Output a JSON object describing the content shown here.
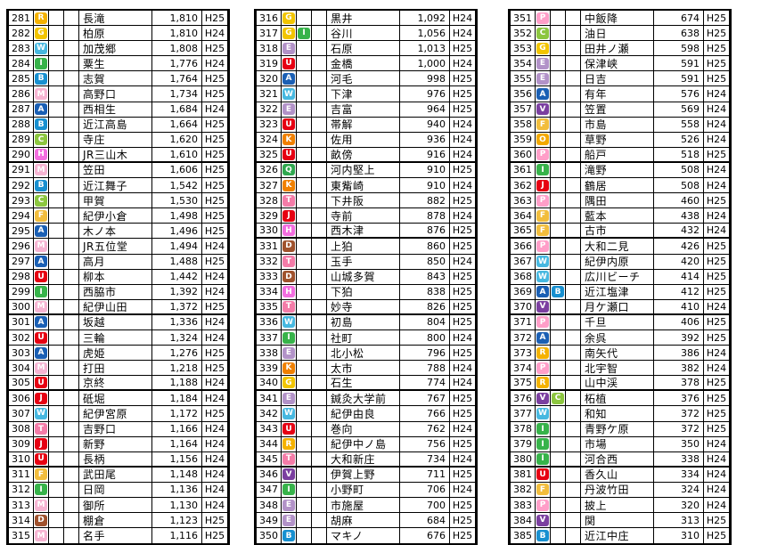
{
  "colors": {
    "R": "#f5b200",
    "G": "#f2c500",
    "W": "#47b8e0",
    "I": "#37b34a",
    "S": "#0099dd",
    "H": "#f36ee0",
    "A": "#1a5fb4",
    "B": "#1890d0",
    "C": "#8cc63f",
    "U": "#e60012",
    "J": "#e60012",
    "E": "#b292c8",
    "K": "#f08000",
    "Q": "#2fa84f",
    "T": "#f47ca8",
    "D": "#a0522d",
    "V": "#7b3fa0",
    "O": "#f3a800",
    "L": "#9c6bb5",
    "P": "#ff9ec8",
    "M": "#f6b4d2",
    "F": "#f2bd3c",
    "N": "#c2a0d6"
  },
  "tables": [
    {
      "rows": [
        {
          "num": "281",
          "b1": "R",
          "name": "長滝",
          "val": "1,810",
          "yr": "H25"
        },
        {
          "num": "282",
          "b1": "G",
          "name": "柏原",
          "val": "1,810",
          "yr": "H24"
        },
        {
          "num": "283",
          "b1": "W",
          "name": "加茂郷",
          "val": "1,808",
          "yr": "H25"
        },
        {
          "num": "284",
          "b1": "I",
          "name": "粟生",
          "val": "1,776",
          "yr": "H24"
        },
        {
          "num": "285",
          "b1": "B",
          "name": "志賀",
          "val": "1,764",
          "yr": "H25"
        },
        {
          "num": "286",
          "b1": "M",
          "name": "高野口",
          "val": "1,734",
          "yr": "H25"
        },
        {
          "num": "287",
          "b1": "A",
          "name": "西相生",
          "val": "1,684",
          "yr": "H24"
        },
        {
          "num": "288",
          "b1": "B",
          "name": "近江高島",
          "val": "1,664",
          "yr": "H25"
        },
        {
          "num": "289",
          "b1": "C",
          "name": "寺庄",
          "val": "1,620",
          "yr": "H25"
        },
        {
          "num": "290",
          "b1": "H",
          "name": "JR三山木",
          "val": "1,610",
          "yr": "H25",
          "thick": true
        },
        {
          "num": "291",
          "b1": "M",
          "name": "笠田",
          "val": "1,606",
          "yr": "H25"
        },
        {
          "num": "292",
          "b1": "B",
          "name": "近江舞子",
          "val": "1,542",
          "yr": "H25"
        },
        {
          "num": "293",
          "b1": "C",
          "name": "甲賀",
          "val": "1,530",
          "yr": "H25"
        },
        {
          "num": "294",
          "b1": "F",
          "name": "紀伊小倉",
          "val": "1,498",
          "yr": "H25"
        },
        {
          "num": "295",
          "b1": "A",
          "name": "木ノ本",
          "val": "1,496",
          "yr": "H25"
        },
        {
          "num": "296",
          "b1": "M",
          "name": "JR五位堂",
          "val": "1,494",
          "yr": "H24"
        },
        {
          "num": "297",
          "b1": "A",
          "name": "高月",
          "val": "1,488",
          "yr": "H25"
        },
        {
          "num": "298",
          "b1": "U",
          "name": "柳本",
          "val": "1,442",
          "yr": "H24"
        },
        {
          "num": "299",
          "b1": "I",
          "name": "西脇市",
          "val": "1,392",
          "yr": "H24"
        },
        {
          "num": "300",
          "b1": "M",
          "name": "紀伊山田",
          "val": "1,372",
          "yr": "H25",
          "thick": true
        },
        {
          "num": "301",
          "b1": "A",
          "name": "坂越",
          "val": "1,336",
          "yr": "H24"
        },
        {
          "num": "302",
          "b1": "U",
          "name": "三輪",
          "val": "1,324",
          "yr": "H24"
        },
        {
          "num": "303",
          "b1": "A",
          "name": "虎姫",
          "val": "1,276",
          "yr": "H25"
        },
        {
          "num": "304",
          "b1": "M",
          "name": "打田",
          "val": "1,218",
          "yr": "H25"
        },
        {
          "num": "305",
          "b1": "U",
          "name": "京終",
          "val": "1,188",
          "yr": "H24",
          "thick": true
        },
        {
          "num": "306",
          "b1": "J",
          "name": "砥堀",
          "val": "1,184",
          "yr": "H24"
        },
        {
          "num": "307",
          "b1": "W",
          "name": "紀伊宮原",
          "val": "1,172",
          "yr": "H25"
        },
        {
          "num": "308",
          "b1": "T",
          "name": "吉野口",
          "val": "1,166",
          "yr": "H24"
        },
        {
          "num": "309",
          "b1": "J",
          "name": "新野",
          "val": "1,164",
          "yr": "H24"
        },
        {
          "num": "310",
          "b1": "U",
          "name": "長柄",
          "val": "1,156",
          "yr": "H24",
          "thick": true
        },
        {
          "num": "311",
          "b1": "F",
          "name": "武田尾",
          "val": "1,148",
          "yr": "H24"
        },
        {
          "num": "312",
          "b1": "I",
          "name": "日岡",
          "val": "1,136",
          "yr": "H24"
        },
        {
          "num": "313",
          "b1": "M",
          "name": "御所",
          "val": "1,130",
          "yr": "H24"
        },
        {
          "num": "314",
          "b1": "D",
          "name": "棚倉",
          "val": "1,123",
          "yr": "H25"
        },
        {
          "num": "315",
          "b1": "M",
          "name": "名手",
          "val": "1,116",
          "yr": "H25"
        }
      ]
    },
    {
      "rows": [
        {
          "num": "316",
          "b1": "G",
          "name": "黒井",
          "val": "1,092",
          "yr": "H24"
        },
        {
          "num": "317",
          "b1": "G",
          "b2": "I",
          "name": "谷川",
          "val": "1,056",
          "yr": "H24"
        },
        {
          "num": "318",
          "b1": "E",
          "name": "石原",
          "val": "1,013",
          "yr": "H25"
        },
        {
          "num": "319",
          "b1": "U",
          "name": "金橋",
          "val": "1,000",
          "yr": "H24"
        },
        {
          "num": "320",
          "b1": "A",
          "name": "河毛",
          "val": "998",
          "yr": "H25"
        },
        {
          "num": "321",
          "b1": "W",
          "name": "下津",
          "val": "976",
          "yr": "H25"
        },
        {
          "num": "322",
          "b1": "E",
          "name": "吉富",
          "val": "964",
          "yr": "H25"
        },
        {
          "num": "323",
          "b1": "U",
          "name": "帯解",
          "val": "940",
          "yr": "H24"
        },
        {
          "num": "324",
          "b1": "K",
          "name": "佐用",
          "val": "936",
          "yr": "H24"
        },
        {
          "num": "325",
          "b1": "U",
          "name": "畝傍",
          "val": "916",
          "yr": "H24",
          "thick": true
        },
        {
          "num": "326",
          "b1": "Q",
          "name": "河内堅上",
          "val": "910",
          "yr": "H25"
        },
        {
          "num": "327",
          "b1": "K",
          "name": "東觜崎",
          "val": "910",
          "yr": "H24"
        },
        {
          "num": "328",
          "b1": "T",
          "name": "下井阪",
          "val": "882",
          "yr": "H25"
        },
        {
          "num": "329",
          "b1": "J",
          "name": "寺前",
          "val": "878",
          "yr": "H24"
        },
        {
          "num": "330",
          "b1": "H",
          "name": "西木津",
          "val": "876",
          "yr": "H25",
          "thick": true
        },
        {
          "num": "331",
          "b1": "D",
          "name": "上狛",
          "val": "860",
          "yr": "H25"
        },
        {
          "num": "332",
          "b1": "T",
          "name": "玉手",
          "val": "850",
          "yr": "H24"
        },
        {
          "num": "333",
          "b1": "D",
          "name": "山城多賀",
          "val": "843",
          "yr": "H25"
        },
        {
          "num": "334",
          "b1": "H",
          "name": "下狛",
          "val": "838",
          "yr": "H25"
        },
        {
          "num": "335",
          "b1": "T",
          "name": "妙寺",
          "val": "826",
          "yr": "H25",
          "thick": true
        },
        {
          "num": "336",
          "b1": "W",
          "name": "初島",
          "val": "804",
          "yr": "H25"
        },
        {
          "num": "337",
          "b1": "I",
          "name": "社町",
          "val": "800",
          "yr": "H24"
        },
        {
          "num": "338",
          "b1": "E",
          "name": "北小松",
          "val": "796",
          "yr": "H25"
        },
        {
          "num": "339",
          "b1": "K",
          "name": "太市",
          "val": "788",
          "yr": "H24"
        },
        {
          "num": "340",
          "b1": "G",
          "name": "石生",
          "val": "774",
          "yr": "H24",
          "thick": true
        },
        {
          "num": "341",
          "b1": "E",
          "name": "鍼灸大学前",
          "val": "767",
          "yr": "H25"
        },
        {
          "num": "342",
          "b1": "W",
          "name": "紀伊由良",
          "val": "766",
          "yr": "H25"
        },
        {
          "num": "343",
          "b1": "U",
          "name": "巻向",
          "val": "762",
          "yr": "H24"
        },
        {
          "num": "344",
          "b1": "R",
          "name": "紀伊中ノ島",
          "val": "756",
          "yr": "H25"
        },
        {
          "num": "345",
          "b1": "T",
          "name": "大和新庄",
          "val": "734",
          "yr": "H24",
          "thick": true
        },
        {
          "num": "346",
          "b1": "V",
          "name": "伊賀上野",
          "val": "711",
          "yr": "H25"
        },
        {
          "num": "347",
          "b1": "I",
          "name": "小野町",
          "val": "706",
          "yr": "H24"
        },
        {
          "num": "348",
          "b1": "E",
          "name": "市施屋",
          "val": "700",
          "yr": "H25"
        },
        {
          "num": "349",
          "b1": "E",
          "name": "胡麻",
          "val": "684",
          "yr": "H25"
        },
        {
          "num": "350",
          "b1": "B",
          "name": "マキノ",
          "val": "676",
          "yr": "H25"
        }
      ]
    },
    {
      "rows": [
        {
          "num": "351",
          "b1": "P",
          "name": "中飯降",
          "val": "674",
          "yr": "H25"
        },
        {
          "num": "352",
          "b1": "C",
          "name": "油日",
          "val": "638",
          "yr": "H25"
        },
        {
          "num": "353",
          "b1": "G",
          "name": "田井ノ瀬",
          "val": "598",
          "yr": "H25"
        },
        {
          "num": "354",
          "b1": "E",
          "name": "保津峡",
          "val": "591",
          "yr": "H25"
        },
        {
          "num": "355",
          "b1": "E",
          "name": "日吉",
          "val": "591",
          "yr": "H25"
        },
        {
          "num": "356",
          "b1": "A",
          "name": "有年",
          "val": "576",
          "yr": "H24"
        },
        {
          "num": "357",
          "b1": "V",
          "name": "笠置",
          "val": "569",
          "yr": "H24"
        },
        {
          "num": "358",
          "b1": "F",
          "name": "市島",
          "val": "558",
          "yr": "H24"
        },
        {
          "num": "359",
          "b1": "O",
          "name": "草野",
          "val": "526",
          "yr": "H24"
        },
        {
          "num": "360",
          "b1": "P",
          "name": "船戸",
          "val": "518",
          "yr": "H25",
          "thick": true
        },
        {
          "num": "361",
          "b1": "I",
          "name": "滝野",
          "val": "508",
          "yr": "H24"
        },
        {
          "num": "362",
          "b1": "J",
          "name": "鶴居",
          "val": "508",
          "yr": "H24"
        },
        {
          "num": "363",
          "b1": "P",
          "name": "隅田",
          "val": "460",
          "yr": "H25"
        },
        {
          "num": "364",
          "b1": "F",
          "name": "藍本",
          "val": "438",
          "yr": "H24"
        },
        {
          "num": "365",
          "b1": "F",
          "name": "古市",
          "val": "432",
          "yr": "H24",
          "thick": true
        },
        {
          "num": "366",
          "b1": "P",
          "name": "大和二見",
          "val": "426",
          "yr": "H25"
        },
        {
          "num": "367",
          "b1": "W",
          "name": "紀伊内原",
          "val": "420",
          "yr": "H25"
        },
        {
          "num": "368",
          "b1": "W",
          "name": "広川ビーチ",
          "val": "414",
          "yr": "H25"
        },
        {
          "num": "369",
          "b1": "A",
          "b2": "B",
          "name": "近江塩津",
          "val": "412",
          "yr": "H25"
        },
        {
          "num": "370",
          "b1": "V",
          "name": "月ケ瀬口",
          "val": "410",
          "yr": "H24",
          "thick": true
        },
        {
          "num": "371",
          "b1": "P",
          "name": "千旦",
          "val": "406",
          "yr": "H25"
        },
        {
          "num": "372",
          "b1": "A",
          "name": "余呉",
          "val": "392",
          "yr": "H25"
        },
        {
          "num": "373",
          "b1": "R",
          "name": "南矢代",
          "val": "386",
          "yr": "H24"
        },
        {
          "num": "374",
          "b1": "P",
          "name": "北宇智",
          "val": "382",
          "yr": "H24"
        },
        {
          "num": "375",
          "b1": "R",
          "name": "山中渓",
          "val": "378",
          "yr": "H25",
          "thick": true
        },
        {
          "num": "376",
          "b1": "V",
          "b2": "C",
          "name": "柘植",
          "val": "376",
          "yr": "H25"
        },
        {
          "num": "377",
          "b1": "W",
          "name": "和知",
          "val": "372",
          "yr": "H25"
        },
        {
          "num": "378",
          "b1": "I",
          "name": "青野ケ原",
          "val": "372",
          "yr": "H25"
        },
        {
          "num": "379",
          "b1": "I",
          "name": "市場",
          "val": "350",
          "yr": "H24"
        },
        {
          "num": "380",
          "b1": "I",
          "name": "河合西",
          "val": "338",
          "yr": "H24",
          "thick": true
        },
        {
          "num": "381",
          "b1": "U",
          "name": "香久山",
          "val": "334",
          "yr": "H24"
        },
        {
          "num": "382",
          "b1": "F",
          "name": "丹波竹田",
          "val": "324",
          "yr": "H24"
        },
        {
          "num": "383",
          "b1": "P",
          "name": "披上",
          "val": "320",
          "yr": "H24"
        },
        {
          "num": "384",
          "b1": "V",
          "name": "関",
          "val": "313",
          "yr": "H25"
        },
        {
          "num": "385",
          "b1": "B",
          "name": "近江中庄",
          "val": "310",
          "yr": "H25"
        }
      ]
    }
  ]
}
